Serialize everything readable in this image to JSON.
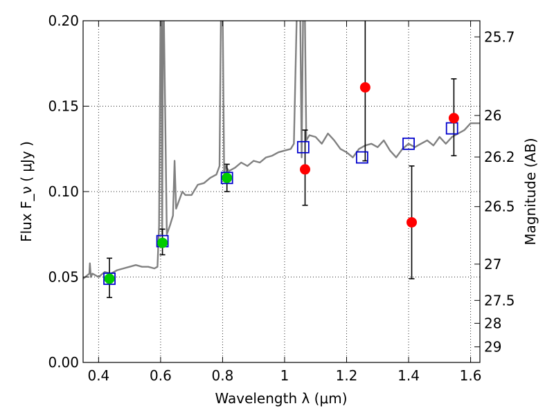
{
  "chart_data": {
    "type": "scatter",
    "title": "",
    "xlabel": "Wavelength  λ (μm)",
    "ylabel": "Flux  F_ν ( μJy )",
    "y2label": "Magnitude (AB)",
    "xlim": [
      0.35,
      1.63
    ],
    "ylim": [
      0.0,
      0.2
    ],
    "grid": true,
    "x_ticks": [
      {
        "value": 0.4,
        "label": "0.4"
      },
      {
        "value": 0.6,
        "label": "0.6"
      },
      {
        "value": 0.8,
        "label": "0.8"
      },
      {
        "value": 1.0,
        "label": "1"
      },
      {
        "value": 1.2,
        "label": "1.2"
      },
      {
        "value": 1.4,
        "label": "1.4"
      },
      {
        "value": 1.6,
        "label": "1.6"
      }
    ],
    "y_ticks": [
      {
        "value": 0.0,
        "label": "0.00"
      },
      {
        "value": 0.05,
        "label": "0.05"
      },
      {
        "value": 0.1,
        "label": "0.10"
      },
      {
        "value": 0.15,
        "label": "0.15"
      },
      {
        "value": 0.2,
        "label": "0.20"
      }
    ],
    "y2_ticks": [
      {
        "value": 25.7,
        "label": "25.7"
      },
      {
        "value": 26.0,
        "label": "26"
      },
      {
        "value": 26.2,
        "label": "26.2"
      },
      {
        "value": 26.5,
        "label": "26.5"
      },
      {
        "value": 27.0,
        "label": "27"
      },
      {
        "value": 27.5,
        "label": "27.5"
      },
      {
        "value": 28.0,
        "label": "28"
      },
      {
        "value": 29.0,
        "label": "29"
      }
    ],
    "template_spectrum": {
      "color": "#808080",
      "x": [
        0.35,
        0.37,
        0.372,
        0.375,
        0.38,
        0.4,
        0.42,
        0.44,
        0.46,
        0.48,
        0.5,
        0.52,
        0.54,
        0.56,
        0.58,
        0.59,
        0.595,
        0.6,
        0.602,
        0.605,
        0.608,
        0.61,
        0.62,
        0.63,
        0.64,
        0.645,
        0.65,
        0.66,
        0.67,
        0.68,
        0.7,
        0.72,
        0.74,
        0.76,
        0.78,
        0.79,
        0.795,
        0.8,
        0.805,
        0.81,
        0.82,
        0.84,
        0.86,
        0.88,
        0.9,
        0.92,
        0.94,
        0.96,
        0.98,
        1.0,
        1.02,
        1.03,
        1.04,
        1.05,
        1.055,
        1.06,
        1.065,
        1.07,
        1.08,
        1.1,
        1.12,
        1.14,
        1.16,
        1.18,
        1.2,
        1.22,
        1.24,
        1.26,
        1.28,
        1.3,
        1.32,
        1.34,
        1.36,
        1.38,
        1.4,
        1.42,
        1.44,
        1.46,
        1.48,
        1.5,
        1.52,
        1.54,
        1.56,
        1.58,
        1.6,
        1.63
      ],
      "y": [
        0.049,
        0.052,
        0.058,
        0.05,
        0.052,
        0.05,
        0.053,
        0.052,
        0.054,
        0.055,
        0.056,
        0.057,
        0.056,
        0.056,
        0.055,
        0.056,
        0.08,
        0.21,
        0.21,
        0.075,
        0.21,
        0.21,
        0.075,
        0.08,
        0.086,
        0.118,
        0.09,
        0.095,
        0.1,
        0.098,
        0.098,
        0.104,
        0.105,
        0.108,
        0.11,
        0.115,
        0.21,
        0.21,
        0.11,
        0.115,
        0.112,
        0.114,
        0.117,
        0.115,
        0.118,
        0.117,
        0.12,
        0.121,
        0.123,
        0.124,
        0.125,
        0.128,
        0.21,
        0.21,
        0.12,
        0.21,
        0.21,
        0.13,
        0.133,
        0.132,
        0.128,
        0.134,
        0.13,
        0.125,
        0.123,
        0.12,
        0.125,
        0.127,
        0.128,
        0.126,
        0.13,
        0.124,
        0.12,
        0.125,
        0.128,
        0.126,
        0.128,
        0.13,
        0.127,
        0.132,
        0.128,
        0.132,
        0.134,
        0.136,
        0.14,
        0.14
      ]
    },
    "model_fluxes": {
      "marker": "open-square",
      "color": "#0000cc",
      "x": [
        0.435,
        0.606,
        0.814,
        1.06,
        1.25,
        1.4,
        1.54
      ],
      "y": [
        0.049,
        0.071,
        0.108,
        0.126,
        0.12,
        0.128,
        0.137
      ]
    },
    "observed_optical": {
      "marker": "filled-circle",
      "color": "#00cc00",
      "x": [
        0.435,
        0.606,
        0.814
      ],
      "y": [
        0.049,
        0.07,
        0.108
      ],
      "yerr_low": [
        0.038,
        0.063,
        0.1
      ],
      "yerr_high": [
        0.061,
        0.078,
        0.116
      ]
    },
    "observed_nir": {
      "marker": "filled-circle",
      "color": "#ff0000",
      "x": [
        1.066,
        1.26,
        1.41,
        1.546
      ],
      "y": [
        0.113,
        0.161,
        0.082,
        0.143
      ],
      "yerr_low": [
        0.092,
        0.118,
        0.049,
        0.121
      ],
      "yerr_high": [
        0.136,
        0.205,
        0.115,
        0.166
      ]
    }
  }
}
